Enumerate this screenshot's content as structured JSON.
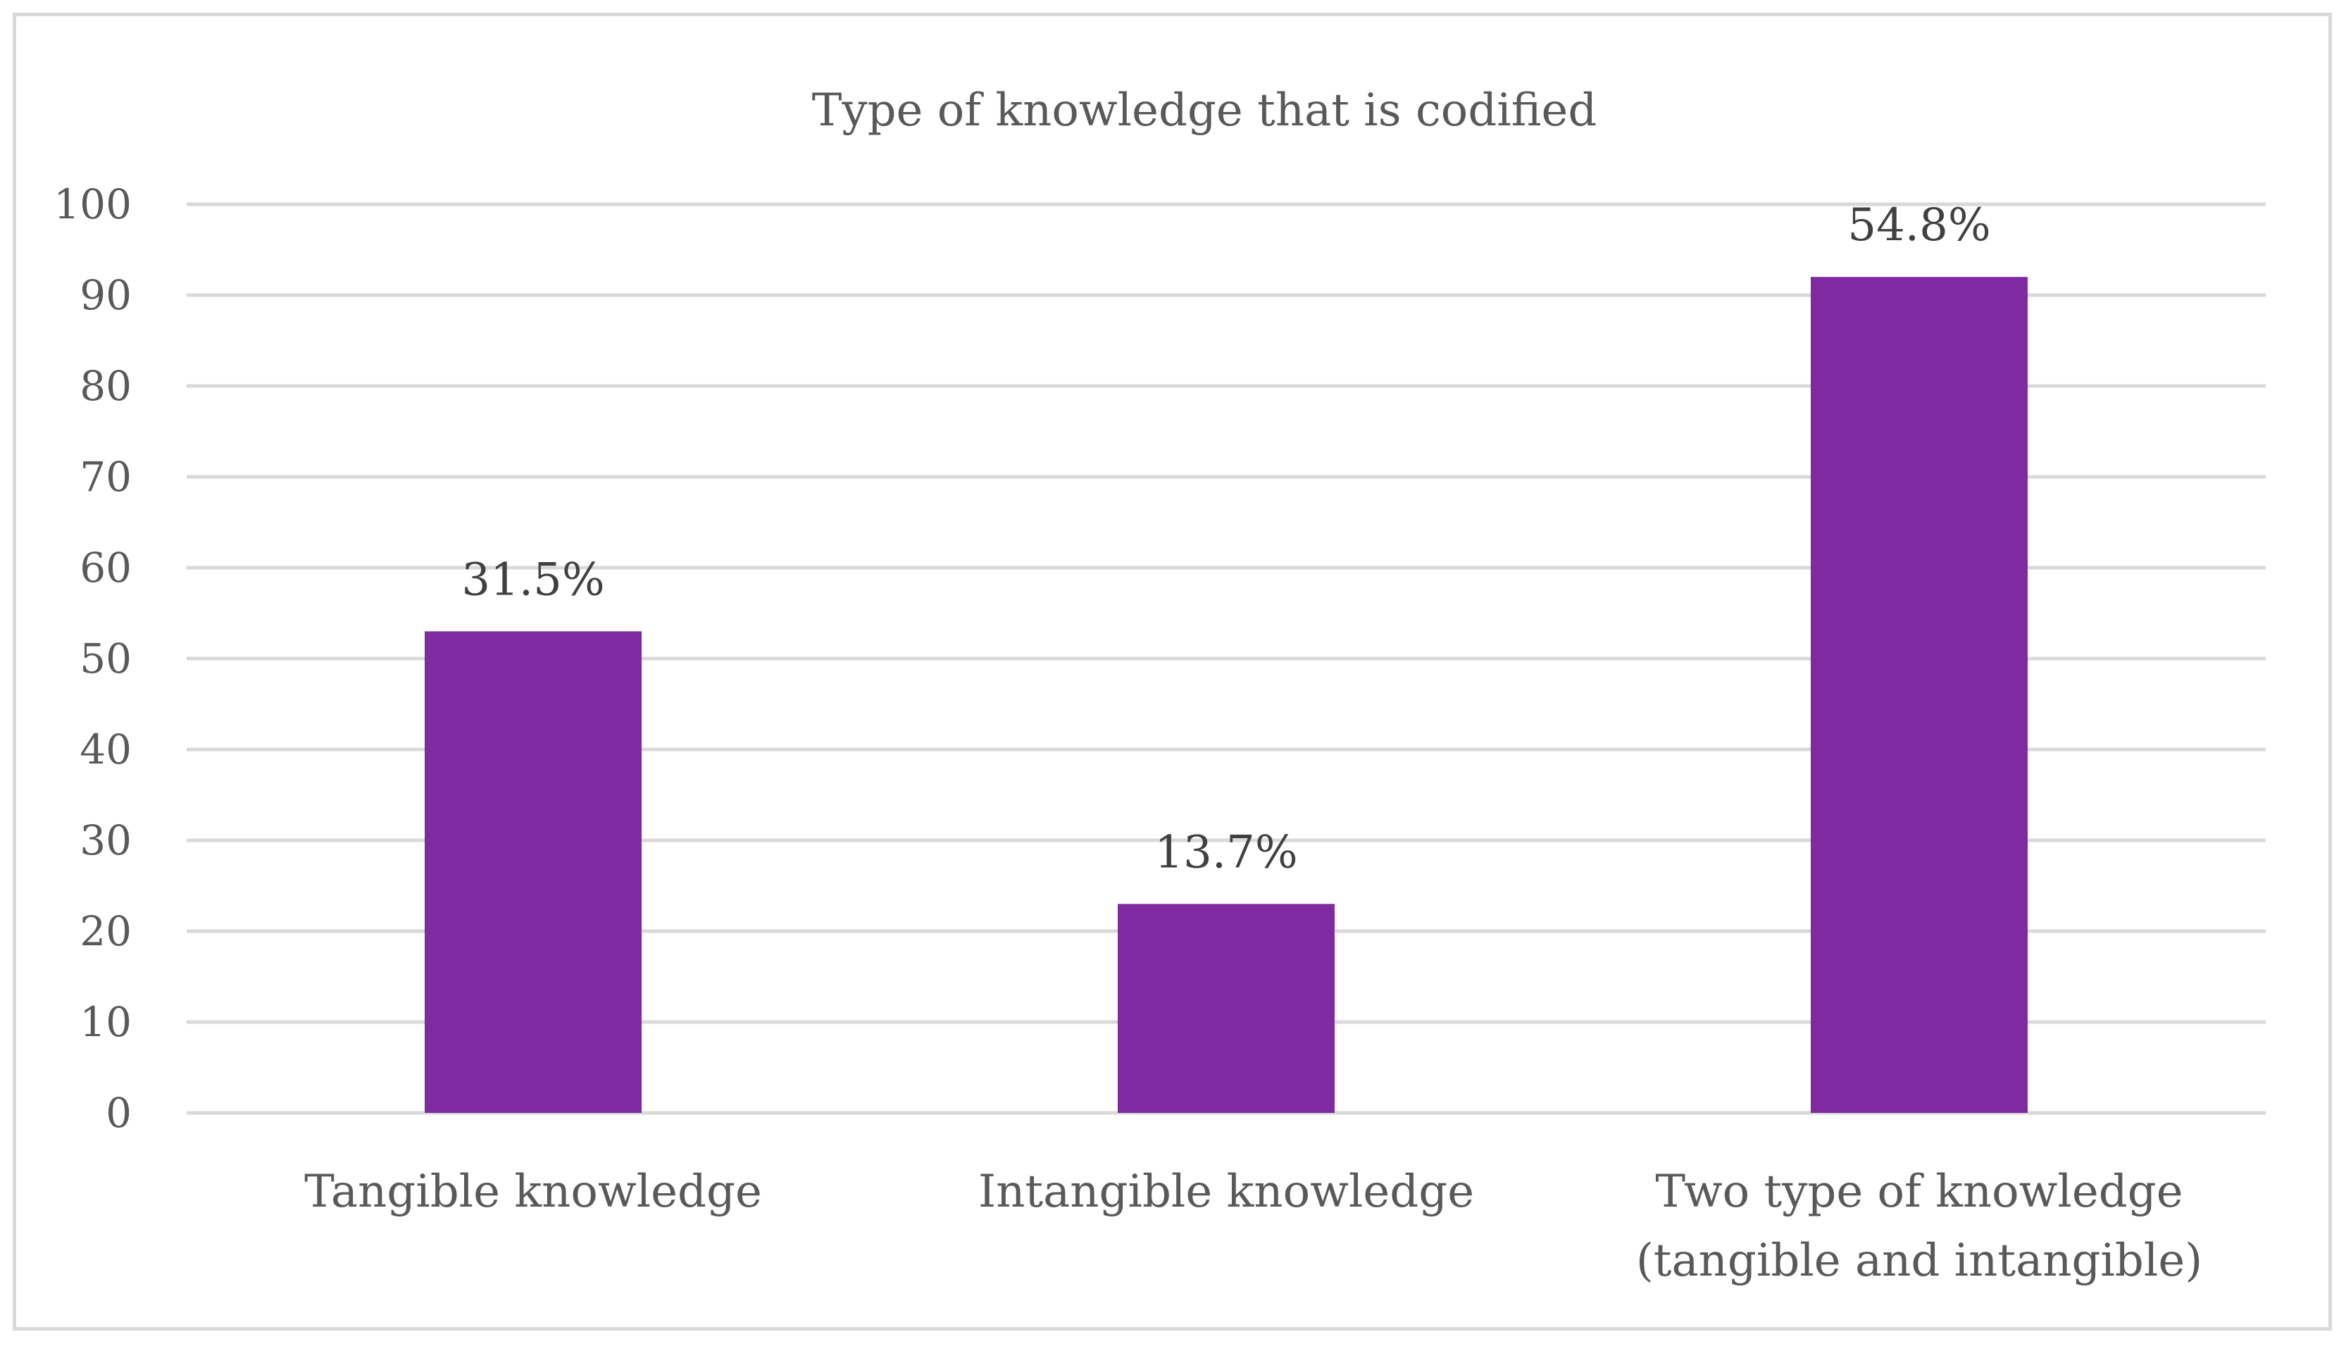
{
  "chart_data": {
    "type": "bar",
    "title": "Type of knowledge that is codified",
    "xlabel": "",
    "ylabel": "",
    "ylim": [
      0,
      100
    ],
    "yticks": [
      0,
      10,
      20,
      30,
      40,
      50,
      60,
      70,
      80,
      90,
      100
    ],
    "grid": true,
    "legend": "none",
    "bar_color": "#7F2AA0",
    "categories": [
      [
        "Tangible knowledge"
      ],
      [
        "Intangible knowledge"
      ],
      [
        "Two type of knowledge",
        "(tangible and intangible)"
      ]
    ],
    "values": [
      53,
      23,
      92
    ],
    "data_labels": [
      "31.5%",
      "13.7%",
      "54.8%"
    ]
  }
}
